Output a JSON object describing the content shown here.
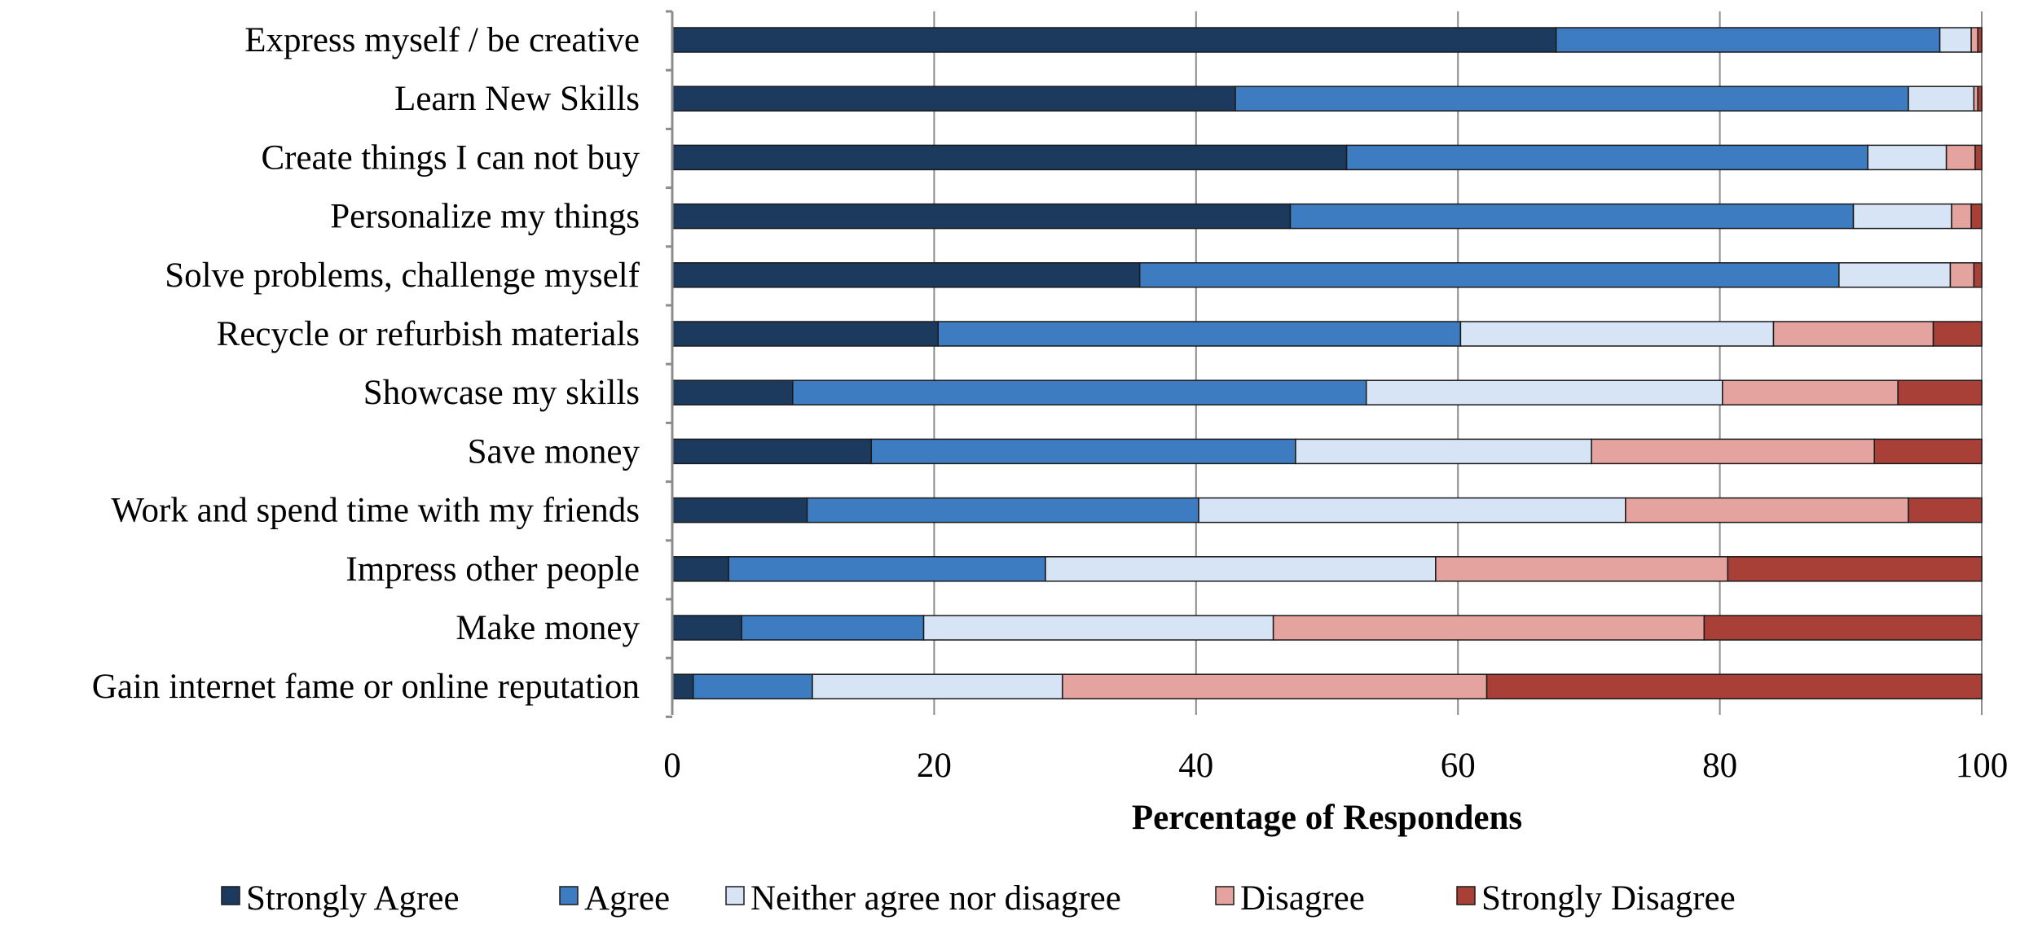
{
  "chart_data": {
    "type": "bar",
    "orientation": "horizontal",
    "stacked": true,
    "title": "",
    "xlabel": "Percentage of Respondens",
    "ylabel": "",
    "xlim": [
      0,
      100
    ],
    "xticks": [
      0,
      20,
      40,
      60,
      80,
      100
    ],
    "grid": true,
    "legend_position": "bottom",
    "categories": [
      "Express myself / be creative",
      "Learn New Skills",
      "Create things I can not buy",
      "Personalize my things",
      "Solve problems, challenge myself",
      "Recycle or refurbish materials",
      "Showcase my skills",
      "Save money",
      "Work and spend time with my friends",
      "Impress other people",
      "Make money",
      "Gain internet fame or online reputation"
    ],
    "series": [
      {
        "name": "Strongly Agree",
        "color": "#1b3a5e",
        "values": [
          67.5,
          43,
          51.5,
          47.2,
          35.7,
          20.3,
          9.2,
          15.2,
          10.3,
          4.3,
          5.3,
          1.6
        ]
      },
      {
        "name": "Agree",
        "color": "#3d7cc0",
        "values": [
          29.3,
          51.4,
          39.8,
          43.0,
          53.4,
          39.9,
          43.8,
          32.4,
          29.9,
          24.2,
          13.9,
          9.1
        ]
      },
      {
        "name": "Neither agree nor disagree",
        "color": "#d6e4f5",
        "values": [
          2.4,
          5.0,
          6.0,
          7.5,
          8.5,
          23.9,
          27.2,
          22.6,
          32.6,
          29.8,
          26.7,
          19.1
        ]
      },
      {
        "name": "Disagree",
        "color": "#e4a39e",
        "values": [
          0.5,
          0.3,
          2.2,
          1.5,
          1.8,
          12.2,
          13.4,
          21.6,
          21.6,
          22.3,
          32.9,
          32.4
        ]
      },
      {
        "name": "Strongly Disagree",
        "color": "#a84038",
        "values": [
          0.3,
          0.3,
          0.5,
          0.8,
          0.6,
          3.7,
          6.4,
          8.2,
          5.6,
          19.4,
          21.2,
          37.8
        ]
      }
    ]
  }
}
